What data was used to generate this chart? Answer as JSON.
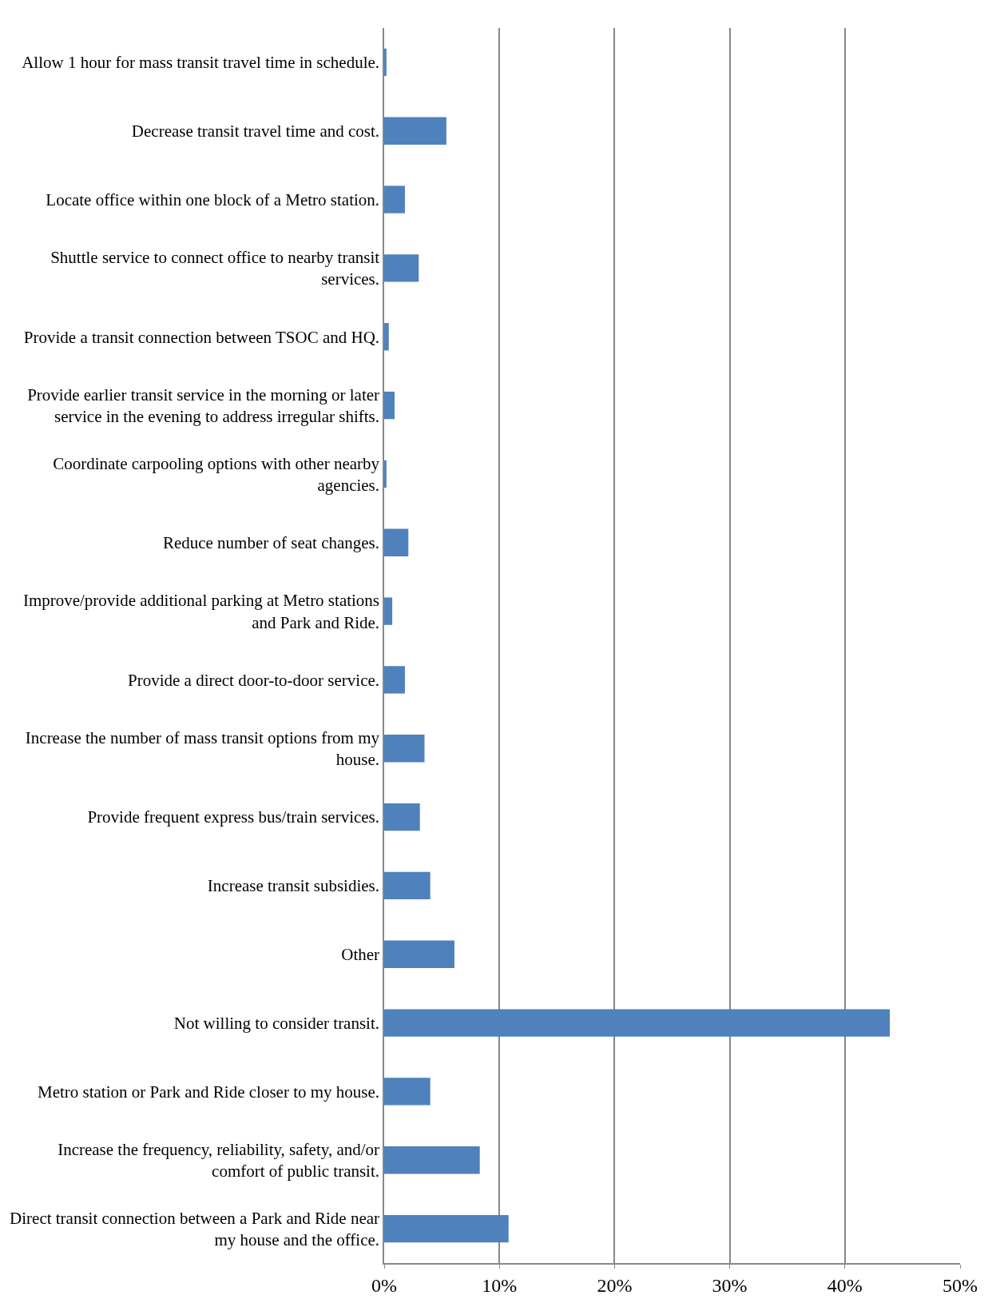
{
  "chart_data": {
    "type": "bar",
    "orientation": "horizontal",
    "categories": [
      "Allow 1 hour for mass transit travel time in schedule.",
      "Decrease transit travel time and cost.",
      "Locate office within one block of a Metro station.",
      "Shuttle service to connect office to nearby transit services.",
      "Provide a transit connection between TSOC and HQ.",
      "Provide earlier transit service in the morning or later service in the evening to address irregular shifts.",
      "Coordinate carpooling options with other nearby agencies.",
      "Reduce number of seat changes.",
      "Improve/provide additional parking at Metro stations and Park and Ride.",
      "Provide a direct door-to-door service.",
      "Increase the number of mass transit options from my house.",
      "Provide frequent express bus/train services.",
      "Increase transit subsidies.",
      "Other",
      "Not willing to consider transit.",
      "Metro station or Park and Ride closer to my house.",
      "Increase the frequency, reliability, safety, and/or comfort of public transit.",
      "Direct transit connection between a Park and Ride near my house and the office."
    ],
    "values": [
      0.2,
      5.4,
      1.8,
      3.0,
      0.4,
      0.9,
      0.2,
      2.1,
      0.7,
      1.8,
      3.5,
      3.1,
      4.0,
      6.1,
      43.9,
      4.0,
      8.3,
      10.8
    ],
    "color": "#4f81bd",
    "xlim": [
      0,
      50
    ],
    "xticks": [
      {
        "value": 0,
        "label": "0%"
      },
      {
        "value": 10,
        "label": "10%"
      },
      {
        "value": 20,
        "label": "20%"
      },
      {
        "value": 30,
        "label": "30%"
      },
      {
        "value": 40,
        "label": "40%"
      },
      {
        "value": 50,
        "label": "50%"
      }
    ],
    "grid": "x",
    "legend": false
  }
}
